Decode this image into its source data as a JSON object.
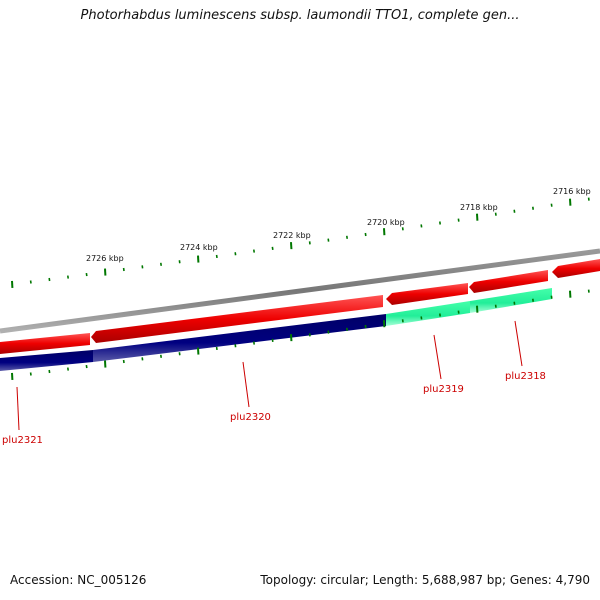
{
  "title": "Photorhabdus luminescens subsp. laumondii TTO1, complete gen...",
  "footer": {
    "accession": "Accession: NC_005126",
    "summary": "Topology: circular; Length: 5,688,987 bp; Genes: 4,790"
  },
  "colors": {
    "forward_gene": "#ee0000",
    "reverse_gene": "#000080",
    "highlight_gene": "#22ee99",
    "backbone": "#808080",
    "ticks": "#007700",
    "gene_label": "#cc0000"
  },
  "ruler": {
    "labels": [
      "2726 kbp",
      "2724 kbp",
      "2722 kbp",
      "2720 kbp",
      "2718 kbp",
      "2716 kbp"
    ]
  },
  "genes": [
    {
      "name": "plu2321",
      "strand": "reverse"
    },
    {
      "name": "plu2320",
      "strand": "reverse"
    },
    {
      "name": "plu2319",
      "strand": "reverse"
    },
    {
      "name": "plu2318",
      "strand": "reverse"
    }
  ]
}
